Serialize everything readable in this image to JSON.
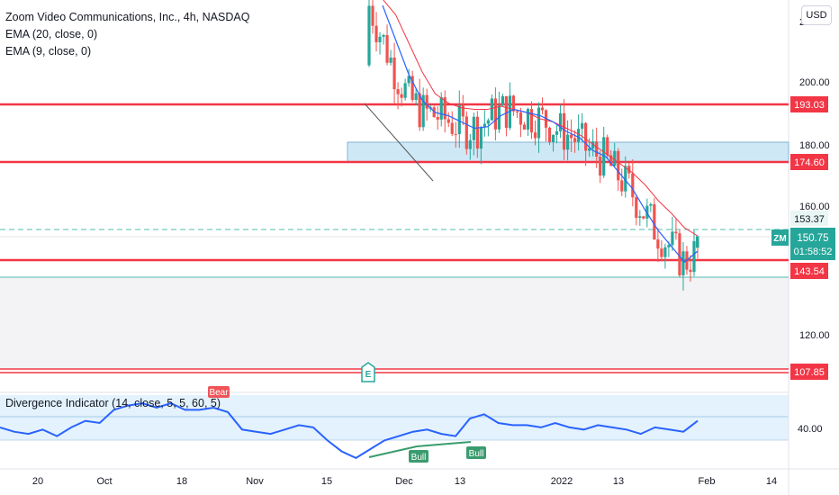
{
  "header": {
    "title": "Zoom Video Communications, Inc., 4h, NASDAQ",
    "indicators": [
      "EMA (20, close, 0)",
      "EMA (9, close, 0)"
    ],
    "currency_button": "USD"
  },
  "price_axis": {
    "labels": [
      "220.00",
      "200.00",
      "180.00",
      "160.00",
      "120.00"
    ],
    "badges": {
      "resistance_1": "193.03",
      "resistance_2": "174.60",
      "dashed_level": "153.37",
      "last_price": "150.75",
      "countdown": "01:58:52",
      "support_1": "143.54",
      "support_2": "107.85",
      "indicator_level": "40.00"
    },
    "symbol_badge": "ZM"
  },
  "time_axis": {
    "labels": [
      "20",
      "Oct",
      "18",
      "Nov",
      "15",
      "Dec",
      "13",
      "2022",
      "13",
      "Feb",
      "14"
    ]
  },
  "annotations": {
    "earnings_marker": "E",
    "bear_label": "Bear",
    "bull_labels": [
      "Bull",
      "Bull"
    ]
  },
  "indicator_pane": {
    "legend": "Divergence Indicator (14, close, 5, 5, 60, 5)"
  },
  "colors": {
    "up": "#26a69a",
    "down": "#ef5350",
    "ema_20": "#f23645",
    "ema_9": "#2962ff",
    "level_line": "#f23645",
    "zone_fill": "#cfe8f5",
    "divergence_line": "#2962ff",
    "bull": "#3a9c6e",
    "bear": "#f05458"
  },
  "chart_data": {
    "type": "candlestick",
    "symbol": "ZM",
    "interval": "4h",
    "exchange": "NASDAQ",
    "ylim": [
      100,
      226
    ],
    "horizontal_levels": [
      193.03,
      174.6,
      143.54,
      107.85
    ],
    "dashed_level": 153.37,
    "last_price": 150.75,
    "zone": [
      174.6,
      181
    ],
    "ema20": [
      226,
      221,
      212,
      203,
      196,
      193,
      191.5,
      191,
      191,
      192,
      191,
      190,
      188,
      187,
      185,
      183,
      180,
      177,
      174,
      171,
      167,
      162,
      158,
      153.4,
      150.8
    ],
    "ema9": [
      224,
      213,
      202,
      194,
      190,
      189,
      187,
      185,
      185.5,
      189,
      191,
      190,
      189,
      187,
      184,
      182,
      178,
      176,
      171,
      166,
      159,
      152.5,
      147.5,
      142.5,
      146
    ],
    "indicator_ylim": [
      25,
      60
    ],
    "indicator_level": 40,
    "indicator_band": [
      40,
      52
    ],
    "divergence_series": [
      44,
      42,
      41,
      43,
      40,
      44,
      47,
      46,
      52,
      54,
      55,
      53,
      55,
      52,
      52,
      53,
      51,
      43,
      42,
      41,
      43,
      45,
      44,
      38,
      33,
      30,
      34,
      38,
      40,
      42,
      43,
      41,
      40,
      48,
      50,
      46,
      45,
      45,
      44,
      46,
      44,
      43,
      45,
      44,
      43,
      41,
      44,
      43,
      42,
      47
    ],
    "bull_divergence": [
      [
        410,
        508
      ],
      [
        463,
        496
      ],
      [
        523,
        491
      ]
    ]
  }
}
